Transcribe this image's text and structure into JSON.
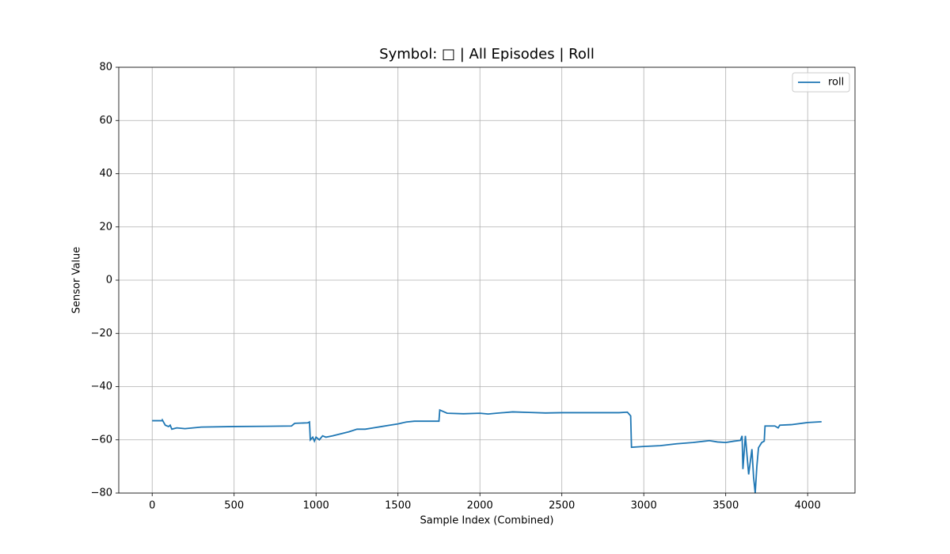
{
  "chart_data": {
    "type": "line",
    "title": "Symbol: □ | All Episodes | Roll",
    "x_label": "Sample Index (Combined)",
    "y_label": "Sensor Value",
    "x": [
      0,
      60,
      62,
      80,
      100,
      110,
      120,
      150,
      200,
      300,
      500,
      700,
      850,
      870,
      950,
      960,
      965,
      980,
      990,
      1000,
      1020,
      1040,
      1060,
      1100,
      1200,
      1250,
      1300,
      1350,
      1400,
      1450,
      1500,
      1550,
      1600,
      1700,
      1750,
      1755,
      1800,
      1900,
      2000,
      2050,
      2100,
      2200,
      2300,
      2400,
      2500,
      2700,
      2850,
      2900,
      2920,
      2925,
      3000,
      3100,
      3200,
      3300,
      3400,
      3450,
      3500,
      3550,
      3590,
      3600,
      3605,
      3620,
      3640,
      3660,
      3670,
      3680,
      3690,
      3700,
      3720,
      3735,
      3740,
      3800,
      3820,
      3830,
      3900,
      4000,
      4085
    ],
    "series": [
      {
        "name": "roll",
        "color": "#1f77b4",
        "values": [
          -52.8,
          -52.8,
          -52.5,
          -54.5,
          -55,
          -54.5,
          -56,
          -55.5,
          -55.8,
          -55.2,
          -55,
          -54.9,
          -54.8,
          -53.8,
          -53.6,
          -53.3,
          -60,
          -59,
          -60.5,
          -59,
          -60,
          -58.5,
          -59,
          -58.5,
          -57,
          -56,
          -56,
          -55.5,
          -55,
          -54.5,
          -54,
          -53.3,
          -53,
          -53,
          -53,
          -48.8,
          -50,
          -50.2,
          -50,
          -50.3,
          -50,
          -49.5,
          -49.7,
          -49.9,
          -49.8,
          -49.8,
          -49.8,
          -49.6,
          -51,
          -62.8,
          -62.5,
          -62.2,
          -61.5,
          -61,
          -60.3,
          -60.8,
          -61,
          -60.5,
          -60.2,
          -58.5,
          -71,
          -58.5,
          -73,
          -63.5,
          -74,
          -80,
          -70,
          -63,
          -61,
          -60.5,
          -54.8,
          -54.8,
          -55.5,
          -54.5,
          -54.3,
          -53.5,
          -53.2
        ]
      }
    ],
    "xlim": [
      -204,
      4289
    ],
    "ylim": [
      -80,
      80
    ],
    "xticks": [
      0,
      500,
      1000,
      1500,
      2000,
      2500,
      3000,
      3500,
      4000
    ],
    "yticks": [
      {
        "value": -80,
        "label": "−80"
      },
      {
        "value": -60,
        "label": "−60"
      },
      {
        "value": -40,
        "label": "−40"
      },
      {
        "value": -20,
        "label": "−20"
      },
      0,
      20,
      40,
      60,
      80
    ],
    "grid": true,
    "legend": "upper right"
  }
}
